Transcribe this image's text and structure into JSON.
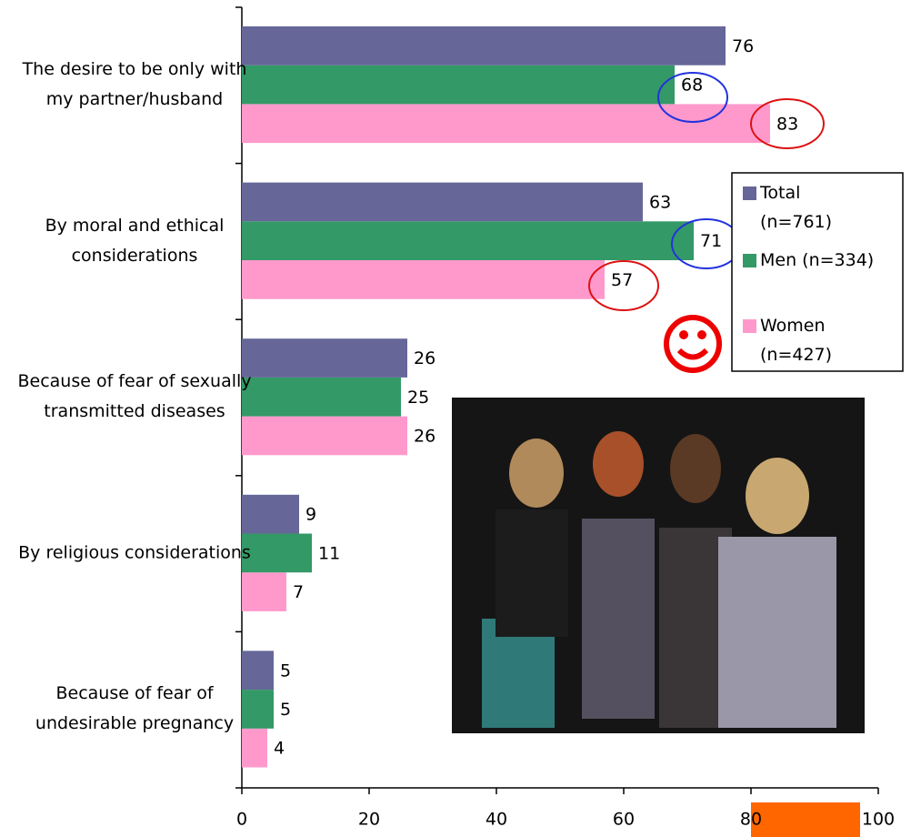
{
  "chart_data": {
    "type": "barh",
    "categories": [
      "The desire to be only with my partner/husband",
      "By moral and ethical considerations",
      "Because of fear of sexually transmitted diseases",
      "By religious considerations",
      "Because of fear of undesirable pregnancy"
    ],
    "series": [
      {
        "name": "Total (n=761)",
        "color": "#666699",
        "values": [
          76,
          63,
          26,
          9,
          5
        ]
      },
      {
        "name": "Men (n=334)",
        "color": "#339966",
        "values": [
          68,
          71,
          25,
          11,
          5
        ]
      },
      {
        "name": "Women (n=427)",
        "color": "#ff99cc",
        "values": [
          83,
          57,
          26,
          7,
          4
        ]
      }
    ],
    "xlim": [
      0,
      100
    ],
    "xticks": [
      0,
      20,
      40,
      60,
      80,
      100
    ],
    "legend": "right"
  }
}
